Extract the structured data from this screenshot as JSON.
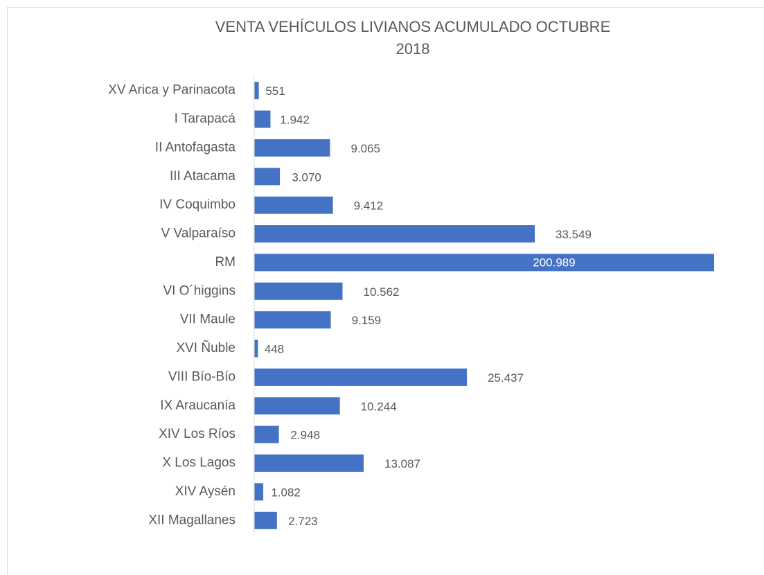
{
  "chart_data": {
    "type": "bar",
    "orientation": "horizontal",
    "title": "VENTA VEHÍCULOS LIVIANOS ACUMULADO OCTUBRE",
    "subtitle": "2018",
    "categories": [
      "XV Arica y Parinacota",
      "I Tarapacá",
      "II Antofagasta",
      "III Atacama",
      "IV Coquimbo",
      "V Valparaíso",
      "RM",
      "VI O´higgins",
      "VII Maule",
      "XVI Ñuble",
      "VIII Bío-Bío",
      "IX Araucanía",
      "XIV Los Ríos",
      "X Los Lagos",
      "XIV Aysén",
      "XII Magallanes"
    ],
    "values": [
      551,
      1942,
      9065,
      3070,
      9412,
      33549,
      200989,
      10562,
      9159,
      448,
      25437,
      10244,
      2948,
      13087,
      1082,
      2723
    ],
    "value_labels": [
      "551",
      "1.942",
      "9.065",
      "3.070",
      "9.412",
      "33.549",
      "200.989",
      "10.562",
      "9.159",
      "448",
      "25.437",
      "10.244",
      "2.948",
      "13.087",
      "1.082",
      "2.723"
    ],
    "color": "#4472c4",
    "xlim": [
      0,
      55000
    ]
  }
}
